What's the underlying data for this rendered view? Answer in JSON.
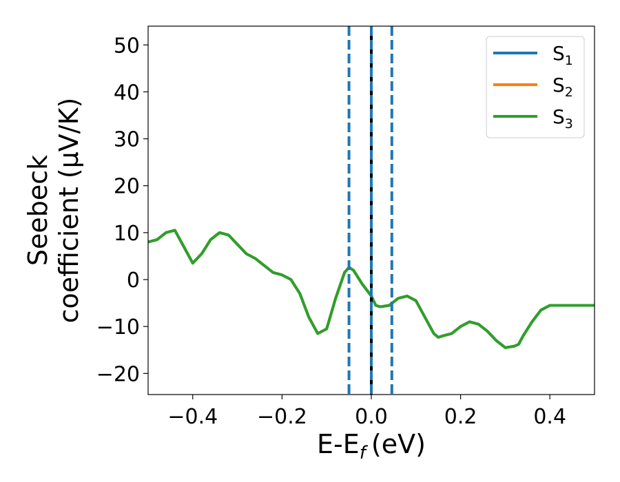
{
  "chart_data": {
    "type": "line",
    "xlabel": "E-E",
    "xlabel_subscript": "f",
    "xlabel_unit": "(eV)",
    "ylabel_line1": "Seebeck",
    "ylabel_line2": "coefficient  (μV/K)",
    "xlim": [
      -0.5,
      0.5
    ],
    "ylim": [
      -24.5,
      54
    ],
    "xticks": [
      -0.4,
      -0.2,
      0.0,
      0.2,
      0.4
    ],
    "xtick_labels": [
      "−0.4",
      "−0.2",
      "0.0",
      "0.2",
      "0.4"
    ],
    "yticks": [
      -20,
      -10,
      0,
      10,
      20,
      30,
      40,
      50
    ],
    "ytick_labels": [
      "−20",
      "−10",
      "0",
      "10",
      "20",
      "30",
      "40",
      "50"
    ],
    "grid": false,
    "legend_position": "top-right",
    "vertical_lines": [
      {
        "x": -0.05,
        "style": "dashed",
        "color": "#1f77b4"
      },
      {
        "x": 0.0,
        "style": "solid",
        "color": "#000000"
      },
      {
        "x": 0.0,
        "style": "dashed",
        "color": "#1f77b4"
      },
      {
        "x": 0.046,
        "style": "dashed",
        "color": "#1f77b4"
      }
    ],
    "x": [
      -0.5,
      -0.48,
      -0.46,
      -0.44,
      -0.42,
      -0.4,
      -0.38,
      -0.36,
      -0.34,
      -0.32,
      -0.3,
      -0.28,
      -0.26,
      -0.24,
      -0.22,
      -0.2,
      -0.18,
      -0.16,
      -0.14,
      -0.12,
      -0.1,
      -0.08,
      -0.06,
      -0.05,
      -0.04,
      -0.02,
      0.0,
      0.01,
      0.02,
      0.04,
      0.06,
      0.08,
      0.1,
      0.12,
      0.14,
      0.15,
      0.16,
      0.18,
      0.2,
      0.22,
      0.24,
      0.26,
      0.28,
      0.3,
      0.32,
      0.33,
      0.34,
      0.36,
      0.38,
      0.4,
      0.42,
      0.44,
      0.46,
      0.48,
      0.5
    ],
    "series": [
      {
        "name": "S1",
        "label_base": "S",
        "label_sub": "1",
        "color": "#1f77b4",
        "values": [
          8.0,
          8.5,
          10.0,
          10.5,
          7.0,
          3.5,
          5.5,
          8.5,
          10.0,
          9.5,
          7.5,
          5.5,
          4.5,
          3.0,
          1.5,
          1.0,
          0.0,
          -3.0,
          -8.0,
          -11.5,
          -10.5,
          -4.0,
          1.5,
          2.6,
          2.0,
          -1.0,
          -3.5,
          -5.5,
          -5.8,
          -5.5,
          -4.0,
          -3.5,
          -4.5,
          -8.0,
          -11.5,
          -12.3,
          -12.0,
          -11.5,
          -10.0,
          -9.0,
          -9.5,
          -11.0,
          -13.0,
          -14.5,
          -14.2,
          -13.8,
          -12.0,
          -9.0,
          -6.5,
          -5.5,
          -5.5,
          -5.5,
          -5.5,
          -5.5,
          -5.5
        ]
      },
      {
        "name": "S2",
        "label_base": "S",
        "label_sub": "2",
        "color": "#ff7f0e",
        "values": [
          8.0,
          8.5,
          10.0,
          10.5,
          7.0,
          3.5,
          5.5,
          8.5,
          10.0,
          9.5,
          7.5,
          5.5,
          4.5,
          3.0,
          1.5,
          1.0,
          0.0,
          -3.0,
          -8.0,
          -11.5,
          -10.5,
          -4.0,
          1.5,
          2.6,
          2.0,
          -1.0,
          -3.5,
          -5.5,
          -5.8,
          -5.5,
          -4.0,
          -3.5,
          -4.5,
          -8.0,
          -11.5,
          -12.3,
          -12.0,
          -11.5,
          -10.0,
          -9.0,
          -9.5,
          -11.0,
          -13.0,
          -14.5,
          -14.2,
          -13.8,
          -12.0,
          -9.0,
          -6.5,
          -5.5,
          -5.5,
          -5.5,
          -5.5,
          -5.5,
          -5.5
        ]
      },
      {
        "name": "S3",
        "label_base": "S",
        "label_sub": "3",
        "color": "#2ca02c",
        "values": [
          8.0,
          8.5,
          10.0,
          10.5,
          7.0,
          3.5,
          5.5,
          8.5,
          10.0,
          9.5,
          7.5,
          5.5,
          4.5,
          3.0,
          1.5,
          1.0,
          0.0,
          -3.0,
          -8.0,
          -11.5,
          -10.5,
          -4.0,
          1.5,
          2.6,
          2.0,
          -1.0,
          -3.5,
          -5.5,
          -5.8,
          -5.5,
          -4.0,
          -3.5,
          -4.5,
          -8.0,
          -11.5,
          -12.3,
          -12.0,
          -11.5,
          -10.0,
          -9.0,
          -9.5,
          -11.0,
          -13.0,
          -14.5,
          -14.2,
          -13.8,
          -12.0,
          -9.0,
          -6.5,
          -5.5,
          -5.5,
          -5.5,
          -5.5,
          -5.5,
          -5.5
        ]
      }
    ]
  }
}
